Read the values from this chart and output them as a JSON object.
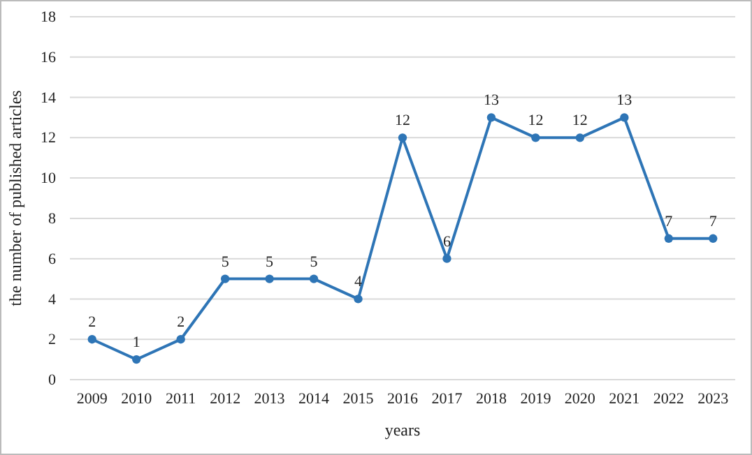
{
  "chart_data": {
    "type": "line",
    "xlabel": "years",
    "ylabel": "the number of published articles",
    "categories": [
      "2009",
      "2010",
      "2011",
      "2012",
      "2013",
      "2014",
      "2015",
      "2016",
      "2017",
      "2018",
      "2019",
      "2020",
      "2021",
      "2022",
      "2023"
    ],
    "series": [
      {
        "color": "#2e75b6",
        "values": [
          2,
          1,
          2,
          5,
          5,
          5,
          4,
          12,
          6,
          13,
          12,
          12,
          13,
          7,
          7
        ]
      }
    ],
    "ylim": [
      0,
      18
    ],
    "yticks": [
      0,
      2,
      4,
      6,
      8,
      10,
      12,
      14,
      16,
      18
    ],
    "grid": "y",
    "data_labels": true,
    "marker": "circle",
    "line_style": "solid"
  }
}
